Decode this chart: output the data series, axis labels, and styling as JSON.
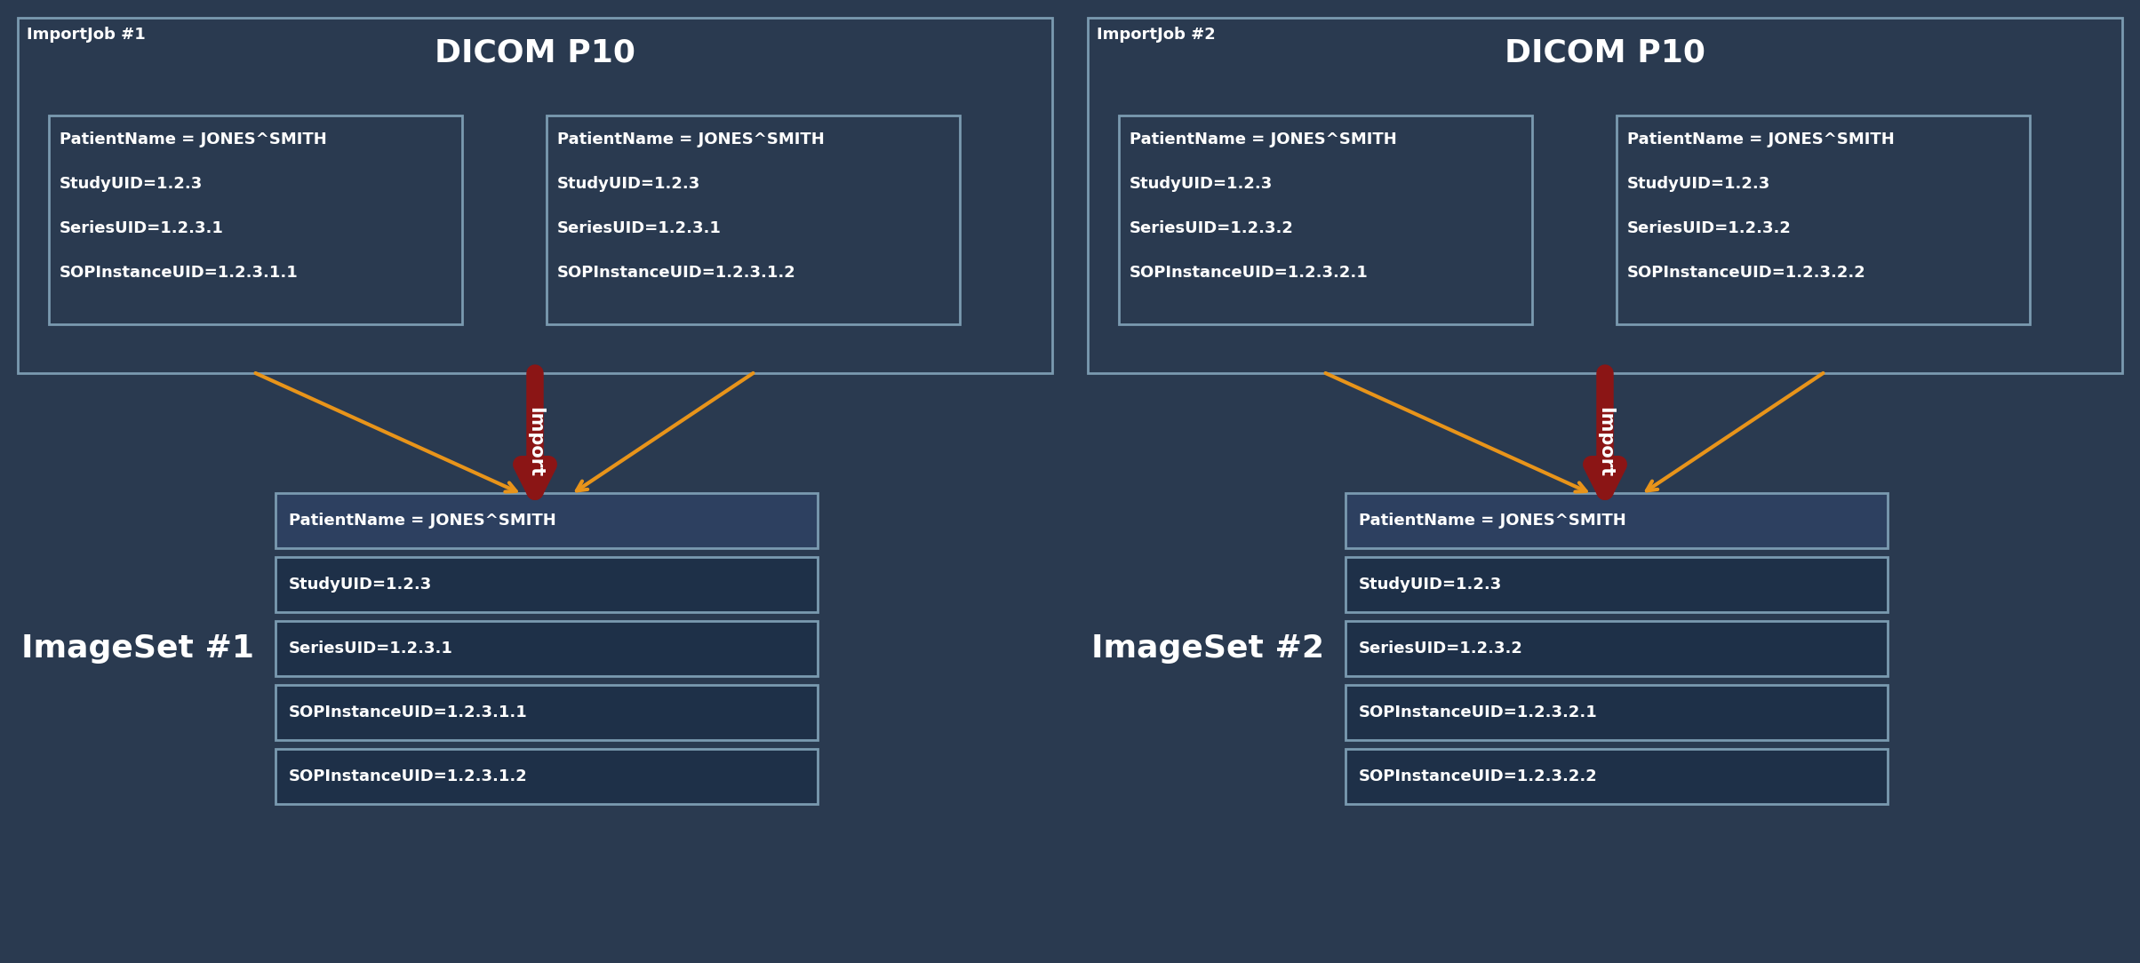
{
  "bg_color": "#2a3a50",
  "box_fill": "#1e3048",
  "box_fill_light": "#2d4060",
  "box_border": "#7a9ab0",
  "text_color": "#ffffff",
  "arrow_orange": "#e8941a",
  "arrow_red": "#8b1515",
  "dicom_title_size": 26,
  "importjob_label_size": 13,
  "imageset_label_size": 26,
  "file_text_size": 13,
  "row_text_size": 13,
  "job1": {
    "label": "ImportJob #1",
    "dicom_title": "DICOM P10",
    "file1": [
      "PatientName = JONES^SMITH",
      "StudyUID=1.2.3",
      "SeriesUID=1.2.3.1",
      "SOPInstanceUID=1.2.3.1.1"
    ],
    "file2": [
      "PatientName = JONES^SMITH",
      "StudyUID=1.2.3",
      "SeriesUID=1.2.3.1",
      "SOPInstanceUID=1.2.3.1.2"
    ],
    "imageset_label": "ImageSet #1",
    "imageset_rows": [
      "PatientName = JONES^SMITH",
      "StudyUID=1.2.3",
      "SeriesUID=1.2.3.1",
      "SOPInstanceUID=1.2.3.1.1",
      "SOPInstanceUID=1.2.3.1.2"
    ]
  },
  "job2": {
    "label": "ImportJob #2",
    "dicom_title": "DICOM P10",
    "file1": [
      "PatientName = JONES^SMITH",
      "StudyUID=1.2.3",
      "SeriesUID=1.2.3.2",
      "SOPInstanceUID=1.2.3.2.1"
    ],
    "file2": [
      "PatientName = JONES^SMITH",
      "StudyUID=1.2.3",
      "SeriesUID=1.2.3.2",
      "SOPInstanceUID=1.2.3.2.2"
    ],
    "imageset_label": "ImageSet #2",
    "imageset_rows": [
      "PatientName = JONES^SMITH",
      "StudyUID=1.2.3",
      "SeriesUID=1.2.3.2",
      "SOPInstanceUID=1.2.3.2.1",
      "SOPInstanceUID=1.2.3.2.2"
    ]
  }
}
